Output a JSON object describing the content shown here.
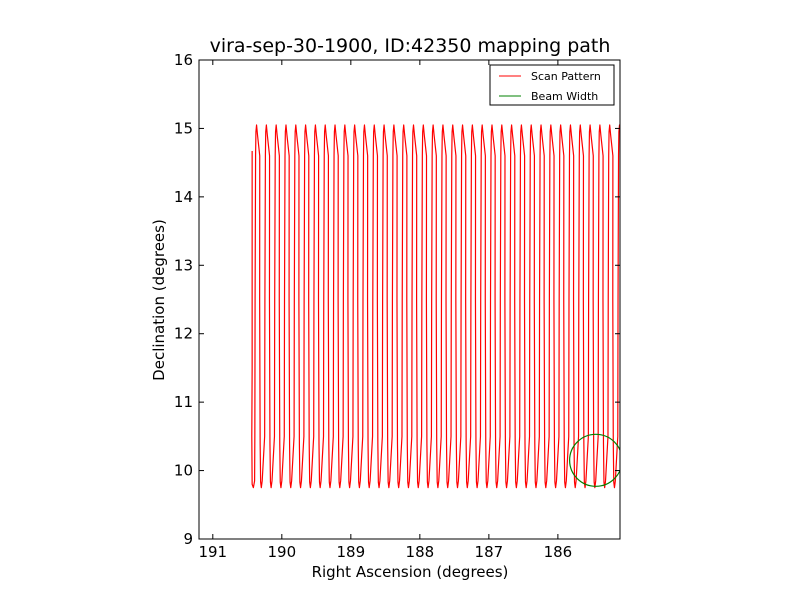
{
  "chart_data": {
    "type": "line",
    "title": "vira-sep-30-1900, ID:42350 mapping path",
    "xlabel": "Right Ascension (degrees)",
    "ylabel": "Declination (degrees)",
    "xlim": [
      191.2,
      185.1
    ],
    "ylim": [
      9,
      16
    ],
    "x_inverted": true,
    "xticks": [
      "191",
      "190",
      "189",
      "188",
      "187",
      "186"
    ],
    "yticks": [
      "9",
      "10",
      "11",
      "12",
      "13",
      "14",
      "15",
      "16"
    ],
    "grid": false,
    "legend": {
      "placement": "top-right",
      "entries": [
        "Scan Pattern",
        "Beam Width"
      ]
    },
    "series": [
      {
        "name": "Scan Pattern",
        "color": "#ff0000",
        "scan_start_ra": 190.43,
        "scan_end_ra": 185.1,
        "scan_start_dec": 14.67,
        "dec_min": 9.75,
        "dec_max": 15.05,
        "scan_leg_count": 75
      },
      {
        "name": "Beam Width",
        "color": "#008000",
        "center_ra": 185.45,
        "center_dec": 10.15,
        "radius_deg": 0.38
      }
    ]
  }
}
